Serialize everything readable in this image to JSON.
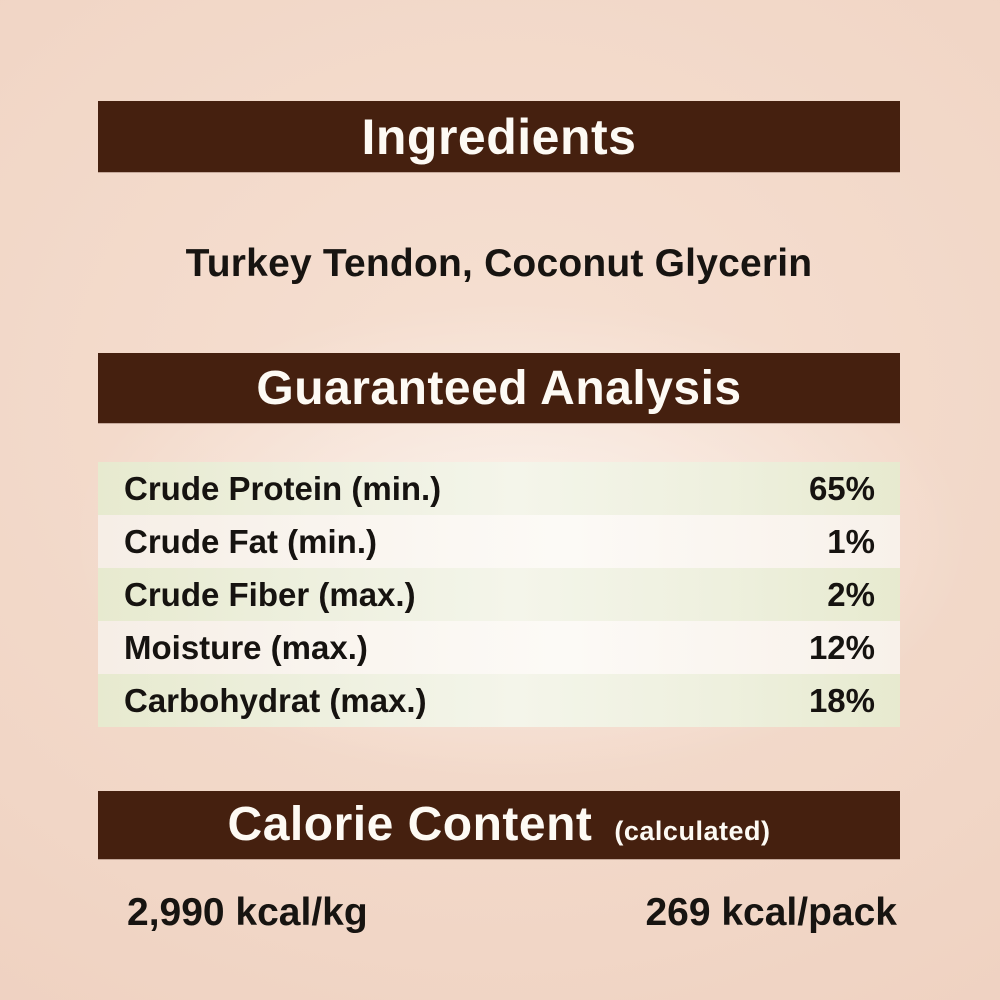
{
  "label": {
    "ingredients": {
      "title": "Ingredients",
      "list": "Turkey Tendon, Coconut Glycerin"
    },
    "analysis": {
      "title": "Guaranteed Analysis",
      "rows": [
        {
          "name": "Crude Protein (min.)",
          "value": "65%"
        },
        {
          "name": "Crude Fat (min.)",
          "value": "1%"
        },
        {
          "name": "Crude Fiber (max.)",
          "value": "2%"
        },
        {
          "name": "Moisture (max.)",
          "value": "12%"
        },
        {
          "name": "Carbohydrat (max.)",
          "value": "18%"
        }
      ]
    },
    "calorie": {
      "title": "Calorie Content",
      "note": "(calculated)",
      "per_kg": "2,990 kcal/kg",
      "per_pack": "269 kcal/pack"
    }
  },
  "colors": {
    "banner_brown": "#45200f",
    "banner_text": "#fdfaf4",
    "background_pink": "#f1d6c6",
    "row_green": "#e9ecd6",
    "row_light": "#f9f4ee",
    "body_text": "#171411"
  }
}
